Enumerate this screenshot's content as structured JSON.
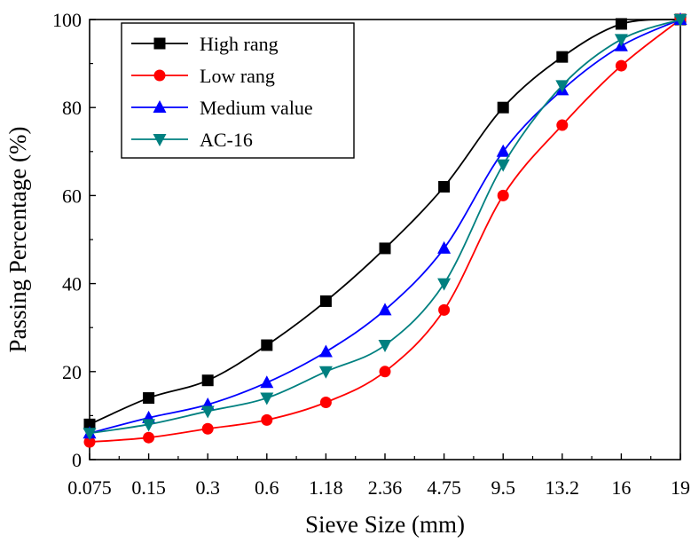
{
  "chart_data": {
    "type": "line",
    "title": "",
    "xlabel": "Sieve Size (mm)",
    "ylabel": "Passing Percentage (%)",
    "categories": [
      "0.075",
      "0.15",
      "0.3",
      "0.6",
      "1.18",
      "2.36",
      "4.75",
      "9.5",
      "13.2",
      "16",
      "19"
    ],
    "ylim": [
      0,
      100
    ],
    "yticks": [
      "0",
      "20",
      "40",
      "60",
      "80",
      "100"
    ],
    "grid": false,
    "legend_position": "top-left",
    "series": [
      {
        "name": "High rang",
        "color": "#000000",
        "marker": "square",
        "values": [
          8,
          14,
          18,
          26,
          36,
          48,
          62,
          80,
          91.5,
          99,
          100
        ]
      },
      {
        "name": "Low rang",
        "color": "#ff0000",
        "marker": "circle",
        "values": [
          4,
          5,
          7,
          9,
          13,
          20,
          34,
          60,
          76,
          89.5,
          100
        ]
      },
      {
        "name": "Medium value",
        "color": "#0000ff",
        "marker": "triangle-up",
        "values": [
          6,
          9.5,
          12.5,
          17.5,
          24.5,
          34,
          48,
          70,
          84,
          94,
          100
        ]
      },
      {
        "name": "AC-16",
        "color": "#008080",
        "marker": "triangle-down",
        "values": [
          6,
          8,
          11,
          14,
          20,
          26,
          40,
          67,
          85,
          95.5,
          100
        ]
      }
    ]
  }
}
